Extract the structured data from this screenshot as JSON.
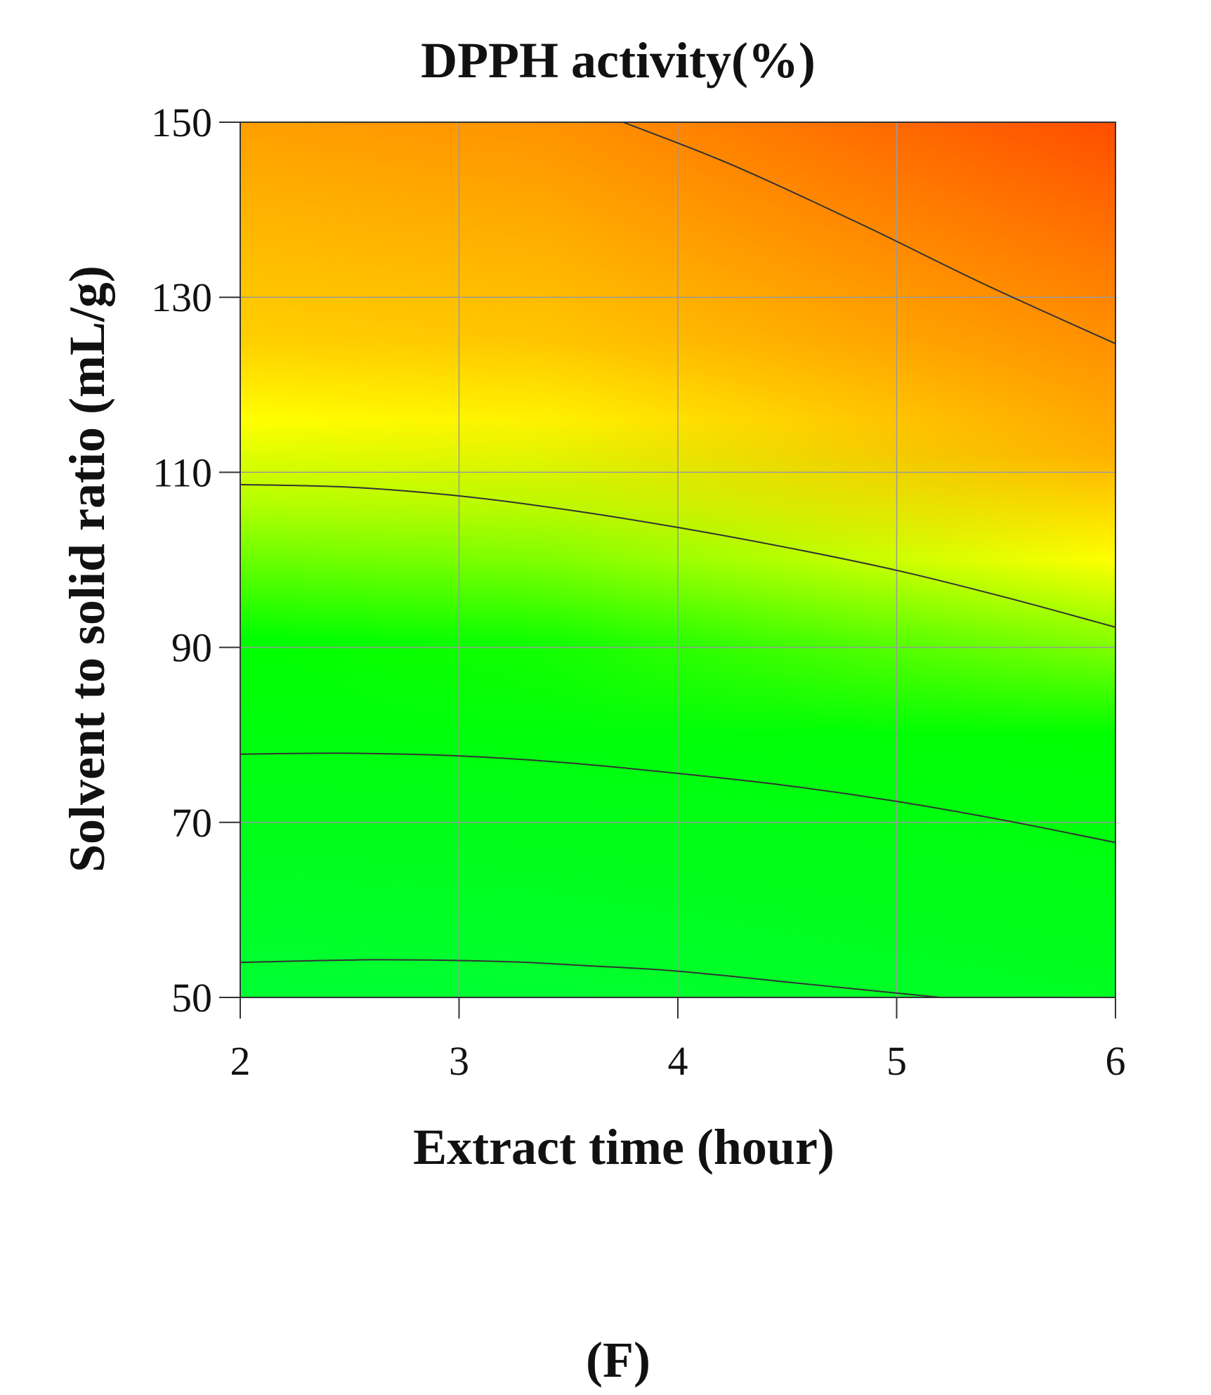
{
  "chart_data": {
    "type": "heatmap",
    "title": "DPPH activity(%)",
    "xlabel": "Extract time (hour)",
    "ylabel": "Solvent to solid ratio (mL/g)",
    "xlim": [
      2,
      6
    ],
    "ylim": [
      50,
      150
    ],
    "x_ticks": [
      "2",
      "3",
      "4",
      "5",
      "6"
    ],
    "y_ticks": [
      "50",
      "70",
      "90",
      "110",
      "130",
      "150"
    ],
    "grid": true,
    "colormap": [
      "#00ff33",
      "#00ff00",
      "#aaff00",
      "#ffff00",
      "#ffb000",
      "#ff8a00",
      "#ff5500"
    ],
    "contours": [
      {
        "points": [
          [
            2,
            54
          ],
          [
            2.6,
            54.3
          ],
          [
            3.2,
            54.1
          ],
          [
            3.6,
            53.6
          ],
          [
            4,
            53
          ],
          [
            4.6,
            51.5
          ],
          [
            5.2,
            50
          ]
        ]
      },
      {
        "points": [
          [
            2,
            77.8
          ],
          [
            2.5,
            77.9
          ],
          [
            3,
            77.6
          ],
          [
            3.5,
            76.8
          ],
          [
            4,
            75.6
          ],
          [
            4.5,
            74.2
          ],
          [
            5,
            72.4
          ],
          [
            5.5,
            70.2
          ],
          [
            6,
            67.7
          ]
        ]
      },
      {
        "points": [
          [
            2,
            108.6
          ],
          [
            2.5,
            108.3
          ],
          [
            3,
            107.3
          ],
          [
            3.5,
            105.7
          ],
          [
            4,
            103.7
          ],
          [
            4.5,
            101.4
          ],
          [
            5,
            98.8
          ],
          [
            5.5,
            95.7
          ],
          [
            6,
            92.3
          ]
        ]
      },
      {
        "points": [
          [
            3.75,
            150
          ],
          [
            4.25,
            145.1
          ],
          [
            4.85,
            138.2
          ],
          [
            5.4,
            131.5
          ],
          [
            6,
            124.7
          ]
        ]
      }
    ]
  },
  "panel_label": "(F)"
}
